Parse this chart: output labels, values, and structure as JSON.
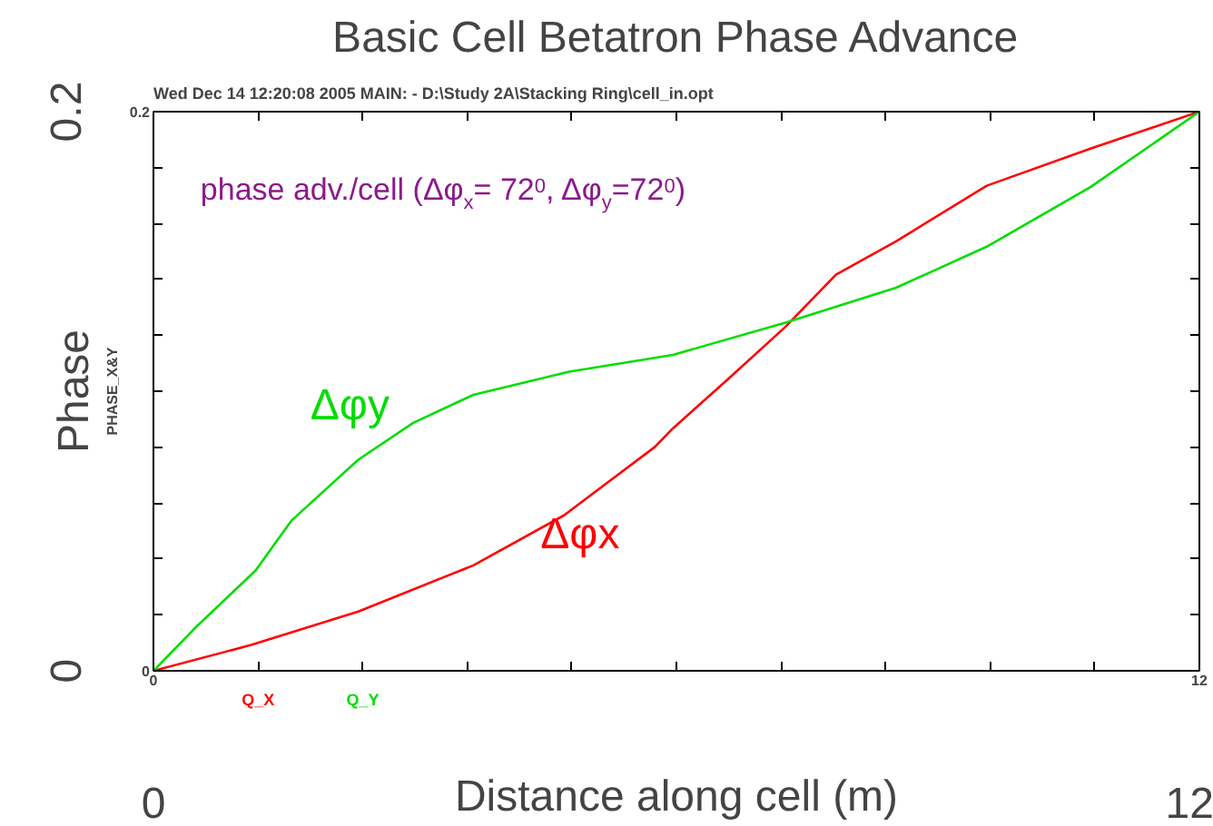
{
  "chart_data": {
    "type": "line",
    "title": "Basic Cell Betatron Phase Advance",
    "subtitle": "Wed Dec 14 12:20:08 2005    MAIN: - D:\\Study 2A\\Stacking Ring\\cell_in.opt",
    "xlabel": "Distance along cell (m)",
    "ylabel": "Phase",
    "annotations": [
      "PHASE_X&Y",
      "phase adv./cell (Δφ$_{x}$= 72$^{0}$, Δφ$_{y}$=72$^{0}$)",
      "0",
      "12",
      "0",
      "0.2",
      "Q_X",
      "Q_Y"
    ],
    "series": [
      {
        "name": "Δφx",
        "color": "#ff0000",
        "x": [
          0,
          1.13,
          2.35,
          3.67,
          4.71,
          5.75,
          5.96,
          6.58,
          7.25,
          7.83,
          8.52,
          9.56,
          10.75,
          12
        ],
        "values": [
          0,
          0.0093,
          0.0212,
          0.0377,
          0.0556,
          0.08,
          0.0867,
          0.104,
          0.123,
          0.1417,
          0.1536,
          0.1735,
          0.1868,
          0.2
        ]
      },
      {
        "name": "Δφy",
        "color": "#00dd00",
        "x": [
          0,
          0.5,
          1.17,
          1.58,
          2.35,
          2.98,
          3.67,
          4.77,
          5.96,
          7.25,
          8.52,
          9.56,
          10.75,
          12
        ],
        "values": [
          0,
          0.016,
          0.0358,
          0.0536,
          0.0755,
          0.0887,
          0.0987,
          0.107,
          0.113,
          0.1245,
          0.137,
          0.1517,
          0.173,
          0.2
        ]
      }
    ],
    "xlim": [
      0,
      12
    ],
    "ylim": [
      0,
      0.2
    ],
    "xticks": [
      0,
      {
        "value": 1.2,
        "label": null
      },
      {
        "value": 2.4,
        "label": null
      },
      {
        "value": 3.6,
        "label": null
      },
      {
        "value": 4.8,
        "label": null
      },
      {
        "value": 6,
        "label": null
      },
      {
        "value": 7.2,
        "label": null
      },
      {
        "value": 8.4,
        "label": null
      },
      {
        "value": 9.6,
        "label": null
      },
      {
        "value": 10.8,
        "label": null
      },
      12
    ],
    "yticks": [
      0,
      {
        "value": 0.02,
        "label": null
      },
      {
        "value": 0.04,
        "label": null
      },
      {
        "value": 0.06,
        "label": null
      },
      {
        "value": 0.08,
        "label": null
      },
      {
        "value": 0.1,
        "label": null
      },
      {
        "value": 0.12,
        "label": null
      },
      {
        "value": 0.14,
        "label": null
      },
      {
        "value": 0.16,
        "label": null
      },
      {
        "value": 0.18,
        "label": null
      },
      0.2
    ],
    "grid": false,
    "marker": "none",
    "line_style": "solid"
  }
}
